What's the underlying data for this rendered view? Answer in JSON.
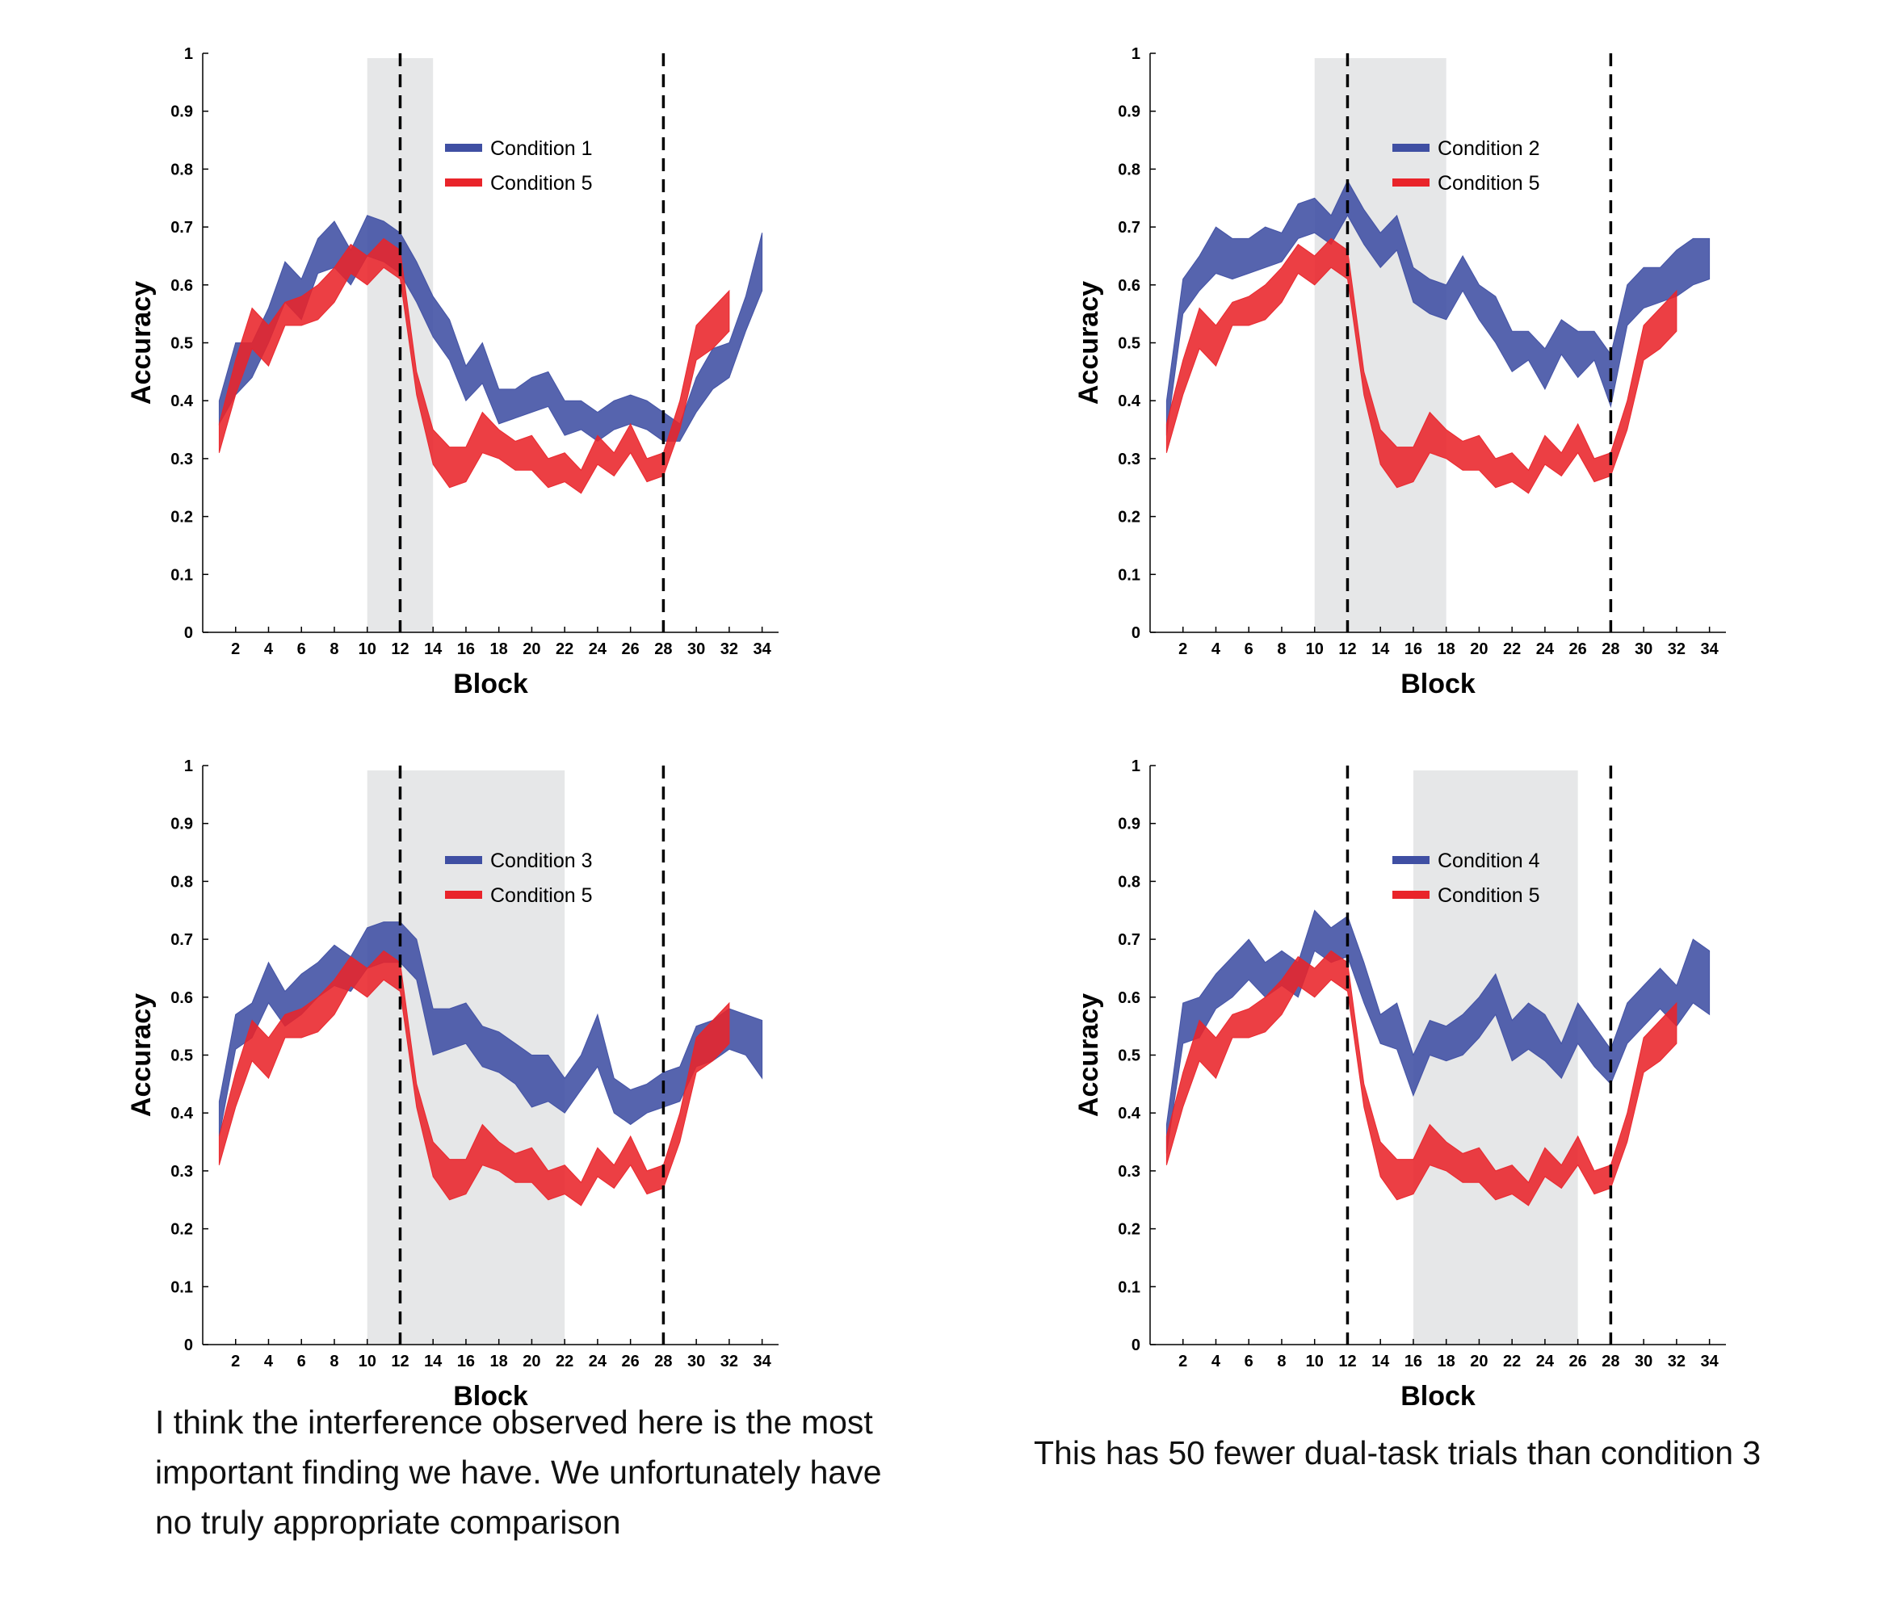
{
  "chart_data": [
    {
      "type": "area",
      "xlabel": "Block",
      "ylabel": "Accuracy",
      "xticks": [
        2,
        4,
        6,
        8,
        10,
        12,
        14,
        16,
        18,
        20,
        22,
        24,
        26,
        28,
        30,
        32,
        34
      ],
      "yticks": [
        0,
        0.1,
        0.2,
        0.3,
        0.4,
        0.5,
        0.6,
        0.7,
        0.8,
        0.9,
        1
      ],
      "yticklabels": [
        "0",
        "0.1",
        "0.2",
        "0.3",
        "0.4",
        "0.5",
        "0.6",
        "0.7",
        "0.8",
        "0.9",
        "1"
      ],
      "xlim": [
        0,
        35
      ],
      "ylim": [
        0,
        1
      ],
      "grid": false,
      "legend": "top-center",
      "shaded_region": [
        10,
        14
      ],
      "vlines": [
        12,
        28
      ],
      "series": [
        {
          "name": "Condition 1",
          "color": "#3f4fa3",
          "x": [
            1,
            2,
            3,
            4,
            5,
            6,
            7,
            8,
            9,
            10,
            11,
            12,
            13,
            14,
            15,
            16,
            17,
            18,
            19,
            20,
            21,
            22,
            23,
            24,
            25,
            26,
            27,
            28,
            29,
            30,
            31,
            32,
            33,
            34
          ],
          "upper": [
            0.4,
            0.5,
            0.5,
            0.56,
            0.64,
            0.61,
            0.68,
            0.71,
            0.66,
            0.72,
            0.71,
            0.69,
            0.64,
            0.58,
            0.54,
            0.46,
            0.5,
            0.42,
            0.42,
            0.44,
            0.45,
            0.4,
            0.4,
            0.38,
            0.4,
            0.41,
            0.4,
            0.38,
            0.36,
            0.44,
            0.49,
            0.5,
            0.58,
            0.69
          ],
          "lower": [
            0.36,
            0.41,
            0.44,
            0.5,
            0.57,
            0.54,
            0.62,
            0.63,
            0.6,
            0.65,
            0.64,
            0.62,
            0.57,
            0.51,
            0.47,
            0.4,
            0.43,
            0.36,
            0.37,
            0.38,
            0.39,
            0.34,
            0.35,
            0.33,
            0.35,
            0.36,
            0.35,
            0.33,
            0.33,
            0.38,
            0.42,
            0.44,
            0.52,
            0.59
          ]
        },
        {
          "name": "Condition 5",
          "color": "#e9242a",
          "x": [
            1,
            2,
            3,
            4,
            5,
            6,
            7,
            8,
            9,
            10,
            11,
            12,
            13,
            14,
            15,
            16,
            17,
            18,
            19,
            20,
            21,
            22,
            23,
            24,
            25,
            26,
            27,
            28,
            29,
            30,
            31,
            32
          ],
          "upper": [
            0.36,
            0.47,
            0.56,
            0.53,
            0.57,
            0.58,
            0.6,
            0.63,
            0.67,
            0.65,
            0.68,
            0.66,
            0.45,
            0.35,
            0.32,
            0.32,
            0.38,
            0.35,
            0.33,
            0.34,
            0.3,
            0.31,
            0.28,
            0.34,
            0.31,
            0.36,
            0.3,
            0.31,
            0.4,
            0.53,
            0.56,
            0.59
          ],
          "lower": [
            0.31,
            0.41,
            0.49,
            0.46,
            0.53,
            0.53,
            0.54,
            0.57,
            0.62,
            0.6,
            0.63,
            0.61,
            0.41,
            0.29,
            0.25,
            0.26,
            0.31,
            0.3,
            0.28,
            0.28,
            0.25,
            0.26,
            0.24,
            0.29,
            0.27,
            0.31,
            0.26,
            0.27,
            0.35,
            0.47,
            0.49,
            0.52
          ]
        }
      ]
    },
    {
      "type": "area",
      "xlabel": "Block",
      "ylabel": "Accuracy",
      "xticks": [
        2,
        4,
        6,
        8,
        10,
        12,
        14,
        16,
        18,
        20,
        22,
        24,
        26,
        28,
        30,
        32,
        34
      ],
      "yticks": [
        0,
        0.1,
        0.2,
        0.3,
        0.4,
        0.5,
        0.6,
        0.7,
        0.8,
        0.9,
        1
      ],
      "yticklabels": [
        "0",
        "0.1",
        "0.2",
        "0.3",
        "0.4",
        "0.5",
        "0.6",
        "0.7",
        "0.8",
        "0.9",
        "1"
      ],
      "xlim": [
        0,
        35
      ],
      "ylim": [
        0,
        1
      ],
      "grid": false,
      "legend": "top-center",
      "shaded_region": [
        10,
        18
      ],
      "vlines": [
        12,
        28
      ],
      "series": [
        {
          "name": "Condition 2",
          "color": "#3f4fa3",
          "x": [
            1,
            2,
            3,
            4,
            5,
            6,
            7,
            8,
            9,
            10,
            11,
            12,
            13,
            14,
            15,
            16,
            17,
            18,
            19,
            20,
            21,
            22,
            23,
            24,
            25,
            26,
            27,
            28,
            29,
            30,
            31,
            32,
            33,
            34
          ],
          "upper": [
            0.4,
            0.61,
            0.65,
            0.7,
            0.68,
            0.68,
            0.7,
            0.69,
            0.74,
            0.75,
            0.72,
            0.78,
            0.73,
            0.69,
            0.72,
            0.63,
            0.61,
            0.6,
            0.65,
            0.6,
            0.58,
            0.52,
            0.52,
            0.49,
            0.54,
            0.52,
            0.52,
            0.48,
            0.6,
            0.63,
            0.63,
            0.66,
            0.68,
            0.68
          ],
          "lower": [
            0.34,
            0.55,
            0.59,
            0.62,
            0.61,
            0.62,
            0.63,
            0.64,
            0.68,
            0.69,
            0.67,
            0.72,
            0.67,
            0.63,
            0.66,
            0.57,
            0.55,
            0.54,
            0.59,
            0.54,
            0.5,
            0.45,
            0.47,
            0.42,
            0.48,
            0.44,
            0.47,
            0.39,
            0.53,
            0.56,
            0.57,
            0.58,
            0.6,
            0.61
          ]
        },
        {
          "name": "Condition 5",
          "color": "#e9242a",
          "x": [
            1,
            2,
            3,
            4,
            5,
            6,
            7,
            8,
            9,
            10,
            11,
            12,
            13,
            14,
            15,
            16,
            17,
            18,
            19,
            20,
            21,
            22,
            23,
            24,
            25,
            26,
            27,
            28,
            29,
            30,
            31,
            32
          ],
          "upper": [
            0.36,
            0.47,
            0.56,
            0.53,
            0.57,
            0.58,
            0.6,
            0.63,
            0.67,
            0.65,
            0.68,
            0.66,
            0.45,
            0.35,
            0.32,
            0.32,
            0.38,
            0.35,
            0.33,
            0.34,
            0.3,
            0.31,
            0.28,
            0.34,
            0.31,
            0.36,
            0.3,
            0.31,
            0.4,
            0.53,
            0.56,
            0.59
          ],
          "lower": [
            0.31,
            0.41,
            0.49,
            0.46,
            0.53,
            0.53,
            0.54,
            0.57,
            0.62,
            0.6,
            0.63,
            0.61,
            0.41,
            0.29,
            0.25,
            0.26,
            0.31,
            0.3,
            0.28,
            0.28,
            0.25,
            0.26,
            0.24,
            0.29,
            0.27,
            0.31,
            0.26,
            0.27,
            0.35,
            0.47,
            0.49,
            0.52
          ]
        }
      ]
    },
    {
      "type": "area",
      "xlabel": "Block",
      "ylabel": "Accuracy",
      "xticks": [
        2,
        4,
        6,
        8,
        10,
        12,
        14,
        16,
        18,
        20,
        22,
        24,
        26,
        28,
        30,
        32,
        34
      ],
      "yticks": [
        0,
        0.1,
        0.2,
        0.3,
        0.4,
        0.5,
        0.6,
        0.7,
        0.8,
        0.9,
        1
      ],
      "yticklabels": [
        "0",
        "0.1",
        "0.2",
        "0.3",
        "0.4",
        "0.5",
        "0.6",
        "0.7",
        "0.8",
        "0.9",
        "1"
      ],
      "xlim": [
        0,
        35
      ],
      "ylim": [
        0,
        1
      ],
      "grid": false,
      "legend": "top-center",
      "shaded_region": [
        10,
        22
      ],
      "vlines": [
        12,
        28
      ],
      "series": [
        {
          "name": "Condition 3",
          "color": "#3f4fa3",
          "x": [
            1,
            2,
            3,
            4,
            5,
            6,
            7,
            8,
            9,
            10,
            11,
            12,
            13,
            14,
            15,
            16,
            17,
            18,
            19,
            20,
            21,
            22,
            23,
            24,
            25,
            26,
            27,
            28,
            29,
            30,
            31,
            32,
            33,
            34
          ],
          "upper": [
            0.42,
            0.57,
            0.59,
            0.66,
            0.61,
            0.64,
            0.66,
            0.69,
            0.67,
            0.72,
            0.73,
            0.73,
            0.7,
            0.58,
            0.58,
            0.59,
            0.55,
            0.54,
            0.52,
            0.5,
            0.5,
            0.46,
            0.5,
            0.57,
            0.46,
            0.44,
            0.45,
            0.47,
            0.48,
            0.55,
            0.56,
            0.58,
            0.57,
            0.56
          ],
          "lower": [
            0.36,
            0.51,
            0.53,
            0.59,
            0.55,
            0.57,
            0.6,
            0.62,
            0.61,
            0.65,
            0.66,
            0.66,
            0.63,
            0.5,
            0.51,
            0.52,
            0.48,
            0.47,
            0.45,
            0.41,
            0.42,
            0.4,
            0.44,
            0.48,
            0.4,
            0.38,
            0.4,
            0.41,
            0.42,
            0.48,
            0.49,
            0.51,
            0.5,
            0.46
          ]
        },
        {
          "name": "Condition 5",
          "color": "#e9242a",
          "x": [
            1,
            2,
            3,
            4,
            5,
            6,
            7,
            8,
            9,
            10,
            11,
            12,
            13,
            14,
            15,
            16,
            17,
            18,
            19,
            20,
            21,
            22,
            23,
            24,
            25,
            26,
            27,
            28,
            29,
            30,
            31,
            32
          ],
          "upper": [
            0.36,
            0.47,
            0.56,
            0.53,
            0.57,
            0.58,
            0.6,
            0.63,
            0.67,
            0.65,
            0.68,
            0.66,
            0.45,
            0.35,
            0.32,
            0.32,
            0.38,
            0.35,
            0.33,
            0.34,
            0.3,
            0.31,
            0.28,
            0.34,
            0.31,
            0.36,
            0.3,
            0.31,
            0.4,
            0.53,
            0.56,
            0.59
          ],
          "lower": [
            0.31,
            0.41,
            0.49,
            0.46,
            0.53,
            0.53,
            0.54,
            0.57,
            0.62,
            0.6,
            0.63,
            0.61,
            0.41,
            0.29,
            0.25,
            0.26,
            0.31,
            0.3,
            0.28,
            0.28,
            0.25,
            0.26,
            0.24,
            0.29,
            0.27,
            0.31,
            0.26,
            0.27,
            0.35,
            0.47,
            0.49,
            0.52
          ]
        }
      ]
    },
    {
      "type": "area",
      "xlabel": "Block",
      "ylabel": "Accuracy",
      "xticks": [
        2,
        4,
        6,
        8,
        10,
        12,
        14,
        16,
        18,
        20,
        22,
        24,
        26,
        28,
        30,
        32,
        34
      ],
      "yticks": [
        0,
        0.1,
        0.2,
        0.3,
        0.4,
        0.5,
        0.6,
        0.7,
        0.8,
        0.9,
        1
      ],
      "yticklabels": [
        "0",
        "0.1",
        "0.2",
        "0.3",
        "0.4",
        "0.5",
        "0.6",
        "0.7",
        "0.8",
        "0.9",
        "1"
      ],
      "xlim": [
        0,
        35
      ],
      "ylim": [
        0,
        1
      ],
      "grid": false,
      "legend": "top-center",
      "shaded_region": [
        16,
        26
      ],
      "vlines": [
        12,
        28
      ],
      "series": [
        {
          "name": "Condition 4",
          "color": "#3f4fa3",
          "x": [
            1,
            2,
            3,
            4,
            5,
            6,
            7,
            8,
            9,
            10,
            11,
            12,
            13,
            14,
            15,
            16,
            17,
            18,
            19,
            20,
            21,
            22,
            23,
            24,
            25,
            26,
            27,
            28,
            29,
            30,
            31,
            32,
            33,
            34
          ],
          "upper": [
            0.38,
            0.59,
            0.6,
            0.64,
            0.67,
            0.7,
            0.66,
            0.68,
            0.66,
            0.75,
            0.72,
            0.74,
            0.66,
            0.57,
            0.59,
            0.5,
            0.56,
            0.55,
            0.57,
            0.6,
            0.64,
            0.56,
            0.59,
            0.57,
            0.52,
            0.59,
            0.55,
            0.51,
            0.59,
            0.62,
            0.65,
            0.62,
            0.7,
            0.68
          ],
          "lower": [
            0.33,
            0.52,
            0.53,
            0.58,
            0.6,
            0.63,
            0.6,
            0.62,
            0.6,
            0.68,
            0.66,
            0.67,
            0.59,
            0.52,
            0.51,
            0.43,
            0.5,
            0.49,
            0.5,
            0.53,
            0.57,
            0.49,
            0.51,
            0.49,
            0.46,
            0.52,
            0.48,
            0.45,
            0.52,
            0.55,
            0.58,
            0.55,
            0.59,
            0.57
          ]
        },
        {
          "name": "Condition 5",
          "color": "#e9242a",
          "x": [
            1,
            2,
            3,
            4,
            5,
            6,
            7,
            8,
            9,
            10,
            11,
            12,
            13,
            14,
            15,
            16,
            17,
            18,
            19,
            20,
            21,
            22,
            23,
            24,
            25,
            26,
            27,
            28,
            29,
            30,
            31,
            32
          ],
          "upper": [
            0.36,
            0.47,
            0.56,
            0.53,
            0.57,
            0.58,
            0.6,
            0.63,
            0.67,
            0.65,
            0.68,
            0.66,
            0.45,
            0.35,
            0.32,
            0.32,
            0.38,
            0.35,
            0.33,
            0.34,
            0.3,
            0.31,
            0.28,
            0.34,
            0.31,
            0.36,
            0.3,
            0.31,
            0.4,
            0.53,
            0.56,
            0.59
          ],
          "lower": [
            0.31,
            0.41,
            0.49,
            0.46,
            0.53,
            0.53,
            0.54,
            0.57,
            0.62,
            0.6,
            0.63,
            0.61,
            0.41,
            0.29,
            0.25,
            0.26,
            0.31,
            0.3,
            0.28,
            0.28,
            0.25,
            0.26,
            0.24,
            0.29,
            0.27,
            0.31,
            0.26,
            0.27,
            0.35,
            0.47,
            0.49,
            0.52
          ]
        }
      ]
    }
  ],
  "notes": {
    "left": "I think the interference observed here is the most important finding we have. We unfortunately have no truly appropriate comparison",
    "right": "This has 50 fewer dual-task trials than condition 3"
  }
}
